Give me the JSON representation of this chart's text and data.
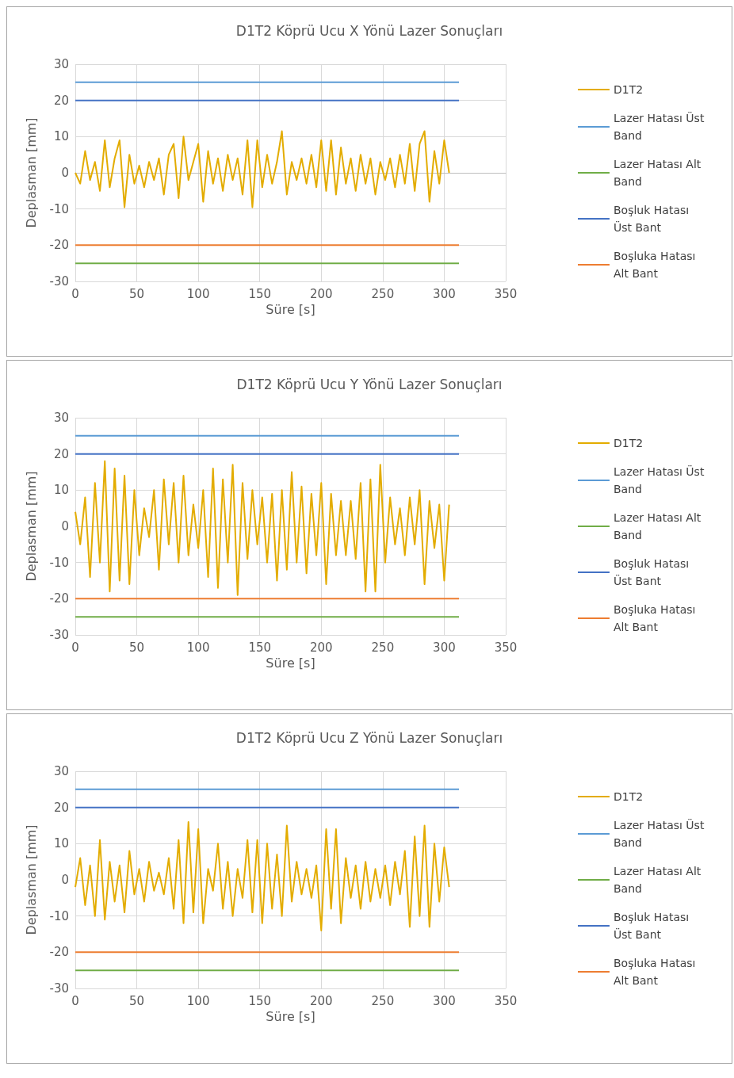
{
  "chart_data": [
    {
      "type": "line",
      "title": "D1T2 Köprü Ucu X Yönü Lazer Sonuçları",
      "xlabel": "Süre [s]",
      "ylabel": "Deplasman [mm]",
      "xlim": [
        0,
        350
      ],
      "xticks": [
        0,
        50,
        100,
        150,
        200,
        250,
        300,
        350
      ],
      "ylim": [
        -30,
        30
      ],
      "yticks": [
        -30,
        -20,
        -10,
        0,
        10,
        20,
        30
      ],
      "grid": true,
      "legend": "right",
      "marker": "none",
      "line_style": "solid",
      "x": [
        0,
        4,
        8,
        12,
        16,
        20,
        24,
        28,
        32,
        36,
        40,
        44,
        48,
        52,
        56,
        60,
        64,
        68,
        72,
        76,
        80,
        84,
        88,
        92,
        96,
        100,
        104,
        108,
        112,
        116,
        120,
        124,
        128,
        132,
        136,
        140,
        144,
        148,
        152,
        156,
        160,
        164,
        168,
        172,
        176,
        180,
        184,
        188,
        192,
        196,
        200,
        204,
        208,
        212,
        216,
        220,
        224,
        228,
        232,
        236,
        240,
        244,
        248,
        252,
        256,
        260,
        264,
        268,
        272,
        276,
        280,
        284,
        288,
        292,
        296,
        300,
        304,
        308,
        312
      ],
      "series": [
        {
          "name": "D1T2",
          "color": "#e3ac00",
          "values": [
            0,
            -3,
            6,
            -2,
            3,
            -5,
            9,
            -4,
            4,
            9,
            -9.5,
            5,
            -3,
            2,
            -4,
            3,
            -2,
            4,
            -6,
            5,
            8,
            -7,
            10,
            -2,
            3,
            8,
            -8,
            6,
            -3,
            4,
            -5,
            5,
            -2,
            4,
            -6,
            9,
            -9.5,
            9,
            -4,
            5,
            -3,
            3,
            11.5,
            -6,
            3,
            -2,
            4,
            -3,
            5,
            -4,
            9,
            -5,
            9,
            -6,
            7,
            -3,
            4,
            -5,
            5,
            -3,
            4,
            -6,
            3,
            -2,
            4,
            -4,
            5,
            -3,
            8,
            -5,
            8,
            11.5,
            -8,
            6,
            -3,
            9,
            0,
            null,
            null
          ]
        },
        {
          "name": "Lazer Hatası Üst Band",
          "color": "#5b9bd5",
          "values": [
            25,
            25,
            25,
            25,
            25,
            25,
            25,
            25,
            25,
            25,
            25,
            25,
            25,
            25,
            25,
            25,
            25,
            25,
            25,
            25,
            25,
            25,
            25,
            25,
            25,
            25,
            25,
            25,
            25,
            25,
            25,
            25,
            25,
            25,
            25,
            25,
            25,
            25,
            25,
            25,
            25,
            25,
            25,
            25,
            25,
            25,
            25,
            25,
            25,
            25,
            25,
            25,
            25,
            25,
            25,
            25,
            25,
            25,
            25,
            25,
            25,
            25,
            25,
            25,
            25,
            25,
            25,
            25,
            25,
            25,
            25,
            25,
            25,
            25,
            25,
            25,
            25,
            25,
            25
          ]
        },
        {
          "name": "Lazer Hatası Alt Band",
          "color": "#70ad47",
          "values": [
            -25,
            -25,
            -25,
            -25,
            -25,
            -25,
            -25,
            -25,
            -25,
            -25,
            -25,
            -25,
            -25,
            -25,
            -25,
            -25,
            -25,
            -25,
            -25,
            -25,
            -25,
            -25,
            -25,
            -25,
            -25,
            -25,
            -25,
            -25,
            -25,
            -25,
            -25,
            -25,
            -25,
            -25,
            -25,
            -25,
            -25,
            -25,
            -25,
            -25,
            -25,
            -25,
            -25,
            -25,
            -25,
            -25,
            -25,
            -25,
            -25,
            -25,
            -25,
            -25,
            -25,
            -25,
            -25,
            -25,
            -25,
            -25,
            -25,
            -25,
            -25,
            -25,
            -25,
            -25,
            -25,
            -25,
            -25,
            -25,
            -25,
            -25,
            -25,
            -25,
            -25,
            -25,
            -25,
            -25,
            -25,
            -25,
            -25
          ]
        },
        {
          "name": "Boşluk Hatası Üst Bant",
          "color": "#4472c4",
          "values": [
            20,
            20,
            20,
            20,
            20,
            20,
            20,
            20,
            20,
            20,
            20,
            20,
            20,
            20,
            20,
            20,
            20,
            20,
            20,
            20,
            20,
            20,
            20,
            20,
            20,
            20,
            20,
            20,
            20,
            20,
            20,
            20,
            20,
            20,
            20,
            20,
            20,
            20,
            20,
            20,
            20,
            20,
            20,
            20,
            20,
            20,
            20,
            20,
            20,
            20,
            20,
            20,
            20,
            20,
            20,
            20,
            20,
            20,
            20,
            20,
            20,
            20,
            20,
            20,
            20,
            20,
            20,
            20,
            20,
            20,
            20,
            20,
            20,
            20,
            20,
            20,
            20,
            20,
            20
          ]
        },
        {
          "name": "Boşluka Hatası Alt Bant",
          "color": "#ed7d31",
          "values": [
            -20,
            -20,
            -20,
            -20,
            -20,
            -20,
            -20,
            -20,
            -20,
            -20,
            -20,
            -20,
            -20,
            -20,
            -20,
            -20,
            -20,
            -20,
            -20,
            -20,
            -20,
            -20,
            -20,
            -20,
            -20,
            -20,
            -20,
            -20,
            -20,
            -20,
            -20,
            -20,
            -20,
            -20,
            -20,
            -20,
            -20,
            -20,
            -20,
            -20,
            -20,
            -20,
            -20,
            -20,
            -20,
            -20,
            -20,
            -20,
            -20,
            -20,
            -20,
            -20,
            -20,
            -20,
            -20,
            -20,
            -20,
            -20,
            -20,
            -20,
            -20,
            -20,
            -20,
            -20,
            -20,
            -20,
            -20,
            -20,
            -20,
            -20,
            -20,
            -20,
            -20,
            -20,
            -20,
            -20,
            -20,
            -20,
            -20
          ]
        }
      ]
    },
    {
      "type": "line",
      "title": "D1T2 Köprü Ucu Y Yönü Lazer Sonuçları",
      "xlabel": "Süre [s]",
      "ylabel": "Deplasman [mm]",
      "xlim": [
        0,
        350
      ],
      "xticks": [
        0,
        50,
        100,
        150,
        200,
        250,
        300,
        350
      ],
      "ylim": [
        -30,
        30
      ],
      "yticks": [
        -30,
        -20,
        -10,
        0,
        10,
        20,
        30
      ],
      "grid": true,
      "legend": "right",
      "marker": "none",
      "line_style": "solid",
      "x": [
        0,
        4,
        8,
        12,
        16,
        20,
        24,
        28,
        32,
        36,
        40,
        44,
        48,
        52,
        56,
        60,
        64,
        68,
        72,
        76,
        80,
        84,
        88,
        92,
        96,
        100,
        104,
        108,
        112,
        116,
        120,
        124,
        128,
        132,
        136,
        140,
        144,
        148,
        152,
        156,
        160,
        164,
        168,
        172,
        176,
        180,
        184,
        188,
        192,
        196,
        200,
        204,
        208,
        212,
        216,
        220,
        224,
        228,
        232,
        236,
        240,
        244,
        248,
        252,
        256,
        260,
        264,
        268,
        272,
        276,
        280,
        284,
        288,
        292,
        296,
        300,
        304,
        308,
        312
      ],
      "series": [
        {
          "name": "D1T2",
          "color": "#e3ac00",
          "values": [
            4,
            -5,
            8,
            -14,
            12,
            -10,
            18,
            -18,
            16,
            -15,
            14,
            -16,
            10,
            -8,
            5,
            -3,
            10,
            -12,
            13,
            -5,
            12,
            -10,
            14,
            -8,
            6,
            -6,
            10,
            -14,
            16,
            -17,
            13,
            -10,
            17,
            -19,
            12,
            -9,
            10,
            -5,
            8,
            -10,
            9,
            -15,
            10,
            -12,
            15,
            -10,
            11,
            -13,
            9,
            -8,
            12,
            -16,
            9,
            -8,
            7,
            -8,
            7,
            -9,
            12,
            -18,
            13,
            -18,
            17,
            -10,
            8,
            -5,
            5,
            -8,
            8,
            -5,
            10,
            -16,
            7,
            -6,
            6,
            -15,
            6,
            null,
            null
          ]
        },
        {
          "name": "Lazer Hatası Üst Band",
          "color": "#5b9bd5",
          "values": [
            25,
            25,
            25,
            25,
            25,
            25,
            25,
            25,
            25,
            25,
            25,
            25,
            25,
            25,
            25,
            25,
            25,
            25,
            25,
            25,
            25,
            25,
            25,
            25,
            25,
            25,
            25,
            25,
            25,
            25,
            25,
            25,
            25,
            25,
            25,
            25,
            25,
            25,
            25,
            25,
            25,
            25,
            25,
            25,
            25,
            25,
            25,
            25,
            25,
            25,
            25,
            25,
            25,
            25,
            25,
            25,
            25,
            25,
            25,
            25,
            25,
            25,
            25,
            25,
            25,
            25,
            25,
            25,
            25,
            25,
            25,
            25,
            25,
            25,
            25,
            25,
            25,
            25,
            25
          ]
        },
        {
          "name": "Lazer Hatası Alt Band",
          "color": "#70ad47",
          "values": [
            -25,
            -25,
            -25,
            -25,
            -25,
            -25,
            -25,
            -25,
            -25,
            -25,
            -25,
            -25,
            -25,
            -25,
            -25,
            -25,
            -25,
            -25,
            -25,
            -25,
            -25,
            -25,
            -25,
            -25,
            -25,
            -25,
            -25,
            -25,
            -25,
            -25,
            -25,
            -25,
            -25,
            -25,
            -25,
            -25,
            -25,
            -25,
            -25,
            -25,
            -25,
            -25,
            -25,
            -25,
            -25,
            -25,
            -25,
            -25,
            -25,
            -25,
            -25,
            -25,
            -25,
            -25,
            -25,
            -25,
            -25,
            -25,
            -25,
            -25,
            -25,
            -25,
            -25,
            -25,
            -25,
            -25,
            -25,
            -25,
            -25,
            -25,
            -25,
            -25,
            -25,
            -25,
            -25,
            -25,
            -25,
            -25,
            -25
          ]
        },
        {
          "name": "Boşluk Hatası Üst Bant",
          "color": "#4472c4",
          "values": [
            20,
            20,
            20,
            20,
            20,
            20,
            20,
            20,
            20,
            20,
            20,
            20,
            20,
            20,
            20,
            20,
            20,
            20,
            20,
            20,
            20,
            20,
            20,
            20,
            20,
            20,
            20,
            20,
            20,
            20,
            20,
            20,
            20,
            20,
            20,
            20,
            20,
            20,
            20,
            20,
            20,
            20,
            20,
            20,
            20,
            20,
            20,
            20,
            20,
            20,
            20,
            20,
            20,
            20,
            20,
            20,
            20,
            20,
            20,
            20,
            20,
            20,
            20,
            20,
            20,
            20,
            20,
            20,
            20,
            20,
            20,
            20,
            20,
            20,
            20,
            20,
            20,
            20,
            20
          ]
        },
        {
          "name": "Boşluka Hatası Alt Bant",
          "color": "#ed7d31",
          "values": [
            -20,
            -20,
            -20,
            -20,
            -20,
            -20,
            -20,
            -20,
            -20,
            -20,
            -20,
            -20,
            -20,
            -20,
            -20,
            -20,
            -20,
            -20,
            -20,
            -20,
            -20,
            -20,
            -20,
            -20,
            -20,
            -20,
            -20,
            -20,
            -20,
            -20,
            -20,
            -20,
            -20,
            -20,
            -20,
            -20,
            -20,
            -20,
            -20,
            -20,
            -20,
            -20,
            -20,
            -20,
            -20,
            -20,
            -20,
            -20,
            -20,
            -20,
            -20,
            -20,
            -20,
            -20,
            -20,
            -20,
            -20,
            -20,
            -20,
            -20,
            -20,
            -20,
            -20,
            -20,
            -20,
            -20,
            -20,
            -20,
            -20,
            -20,
            -20,
            -20,
            -20,
            -20,
            -20,
            -20,
            -20,
            -20,
            -20
          ]
        }
      ]
    },
    {
      "type": "line",
      "title": "D1T2 Köprü Ucu Z Yönü Lazer Sonuçları",
      "xlabel": "Süre [s]",
      "ylabel": "Deplasman [mm]",
      "xlim": [
        0,
        350
      ],
      "xticks": [
        0,
        50,
        100,
        150,
        200,
        250,
        300,
        350
      ],
      "ylim": [
        -30,
        30
      ],
      "yticks": [
        -30,
        -20,
        -10,
        0,
        10,
        20,
        30
      ],
      "grid": true,
      "legend": "right",
      "marker": "none",
      "line_style": "solid",
      "x": [
        0,
        4,
        8,
        12,
        16,
        20,
        24,
        28,
        32,
        36,
        40,
        44,
        48,
        52,
        56,
        60,
        64,
        68,
        72,
        76,
        80,
        84,
        88,
        92,
        96,
        100,
        104,
        108,
        112,
        116,
        120,
        124,
        128,
        132,
        136,
        140,
        144,
        148,
        152,
        156,
        160,
        164,
        168,
        172,
        176,
        180,
        184,
        188,
        192,
        196,
        200,
        204,
        208,
        212,
        216,
        220,
        224,
        228,
        232,
        236,
        240,
        244,
        248,
        252,
        256,
        260,
        264,
        268,
        272,
        276,
        280,
        284,
        288,
        292,
        296,
        300,
        304,
        308,
        312
      ],
      "series": [
        {
          "name": "D1T2",
          "color": "#e3ac00",
          "values": [
            -2,
            6,
            -7,
            4,
            -10,
            11,
            -11,
            5,
            -6,
            4,
            -9,
            8,
            -4,
            3,
            -6,
            5,
            -3,
            2,
            -4,
            6,
            -8,
            11,
            -12,
            16,
            -9,
            14,
            -12,
            3,
            -3,
            10,
            -8,
            5,
            -10,
            3,
            -5,
            11,
            -9,
            11,
            -12,
            10,
            -8,
            7,
            -10,
            15,
            -6,
            5,
            -4,
            3,
            -5,
            4,
            -14,
            14,
            -8,
            14,
            -12,
            6,
            -5,
            4,
            -8,
            5,
            -6,
            3,
            -5,
            4,
            -7,
            5,
            -4,
            8,
            -13,
            12,
            -10,
            15,
            -13,
            10,
            -6,
            9,
            -2,
            null,
            null
          ]
        },
        {
          "name": "Lazer Hatası Üst Band",
          "color": "#5b9bd5",
          "values": [
            25,
            25,
            25,
            25,
            25,
            25,
            25,
            25,
            25,
            25,
            25,
            25,
            25,
            25,
            25,
            25,
            25,
            25,
            25,
            25,
            25,
            25,
            25,
            25,
            25,
            25,
            25,
            25,
            25,
            25,
            25,
            25,
            25,
            25,
            25,
            25,
            25,
            25,
            25,
            25,
            25,
            25,
            25,
            25,
            25,
            25,
            25,
            25,
            25,
            25,
            25,
            25,
            25,
            25,
            25,
            25,
            25,
            25,
            25,
            25,
            25,
            25,
            25,
            25,
            25,
            25,
            25,
            25,
            25,
            25,
            25,
            25,
            25,
            25,
            25,
            25,
            25,
            25,
            25
          ]
        },
        {
          "name": "Lazer Hatası Alt Band",
          "color": "#70ad47",
          "values": [
            -25,
            -25,
            -25,
            -25,
            -25,
            -25,
            -25,
            -25,
            -25,
            -25,
            -25,
            -25,
            -25,
            -25,
            -25,
            -25,
            -25,
            -25,
            -25,
            -25,
            -25,
            -25,
            -25,
            -25,
            -25,
            -25,
            -25,
            -25,
            -25,
            -25,
            -25,
            -25,
            -25,
            -25,
            -25,
            -25,
            -25,
            -25,
            -25,
            -25,
            -25,
            -25,
            -25,
            -25,
            -25,
            -25,
            -25,
            -25,
            -25,
            -25,
            -25,
            -25,
            -25,
            -25,
            -25,
            -25,
            -25,
            -25,
            -25,
            -25,
            -25,
            -25,
            -25,
            -25,
            -25,
            -25,
            -25,
            -25,
            -25,
            -25,
            -25,
            -25,
            -25,
            -25,
            -25,
            -25,
            -25,
            -25,
            -25
          ]
        },
        {
          "name": "Boşluk Hatası Üst Bant",
          "color": "#4472c4",
          "values": [
            20,
            20,
            20,
            20,
            20,
            20,
            20,
            20,
            20,
            20,
            20,
            20,
            20,
            20,
            20,
            20,
            20,
            20,
            20,
            20,
            20,
            20,
            20,
            20,
            20,
            20,
            20,
            20,
            20,
            20,
            20,
            20,
            20,
            20,
            20,
            20,
            20,
            20,
            20,
            20,
            20,
            20,
            20,
            20,
            20,
            20,
            20,
            20,
            20,
            20,
            20,
            20,
            20,
            20,
            20,
            20,
            20,
            20,
            20,
            20,
            20,
            20,
            20,
            20,
            20,
            20,
            20,
            20,
            20,
            20,
            20,
            20,
            20,
            20,
            20,
            20,
            20,
            20,
            20
          ]
        },
        {
          "name": "Boşluka Hatası Alt Bant",
          "color": "#ed7d31",
          "values": [
            -20,
            -20,
            -20,
            -20,
            -20,
            -20,
            -20,
            -20,
            -20,
            -20,
            -20,
            -20,
            -20,
            -20,
            -20,
            -20,
            -20,
            -20,
            -20,
            -20,
            -20,
            -20,
            -20,
            -20,
            -20,
            -20,
            -20,
            -20,
            -20,
            -20,
            -20,
            -20,
            -20,
            -20,
            -20,
            -20,
            -20,
            -20,
            -20,
            -20,
            -20,
            -20,
            -20,
            -20,
            -20,
            -20,
            -20,
            -20,
            -20,
            -20,
            -20,
            -20,
            -20,
            -20,
            -20,
            -20,
            -20,
            -20,
            -20,
            -20,
            -20,
            -20,
            -20,
            -20,
            -20,
            -20,
            -20,
            -20,
            -20,
            -20,
            -20,
            -20,
            -20,
            -20,
            -20,
            -20,
            -20,
            -20,
            -20
          ]
        }
      ]
    }
  ]
}
